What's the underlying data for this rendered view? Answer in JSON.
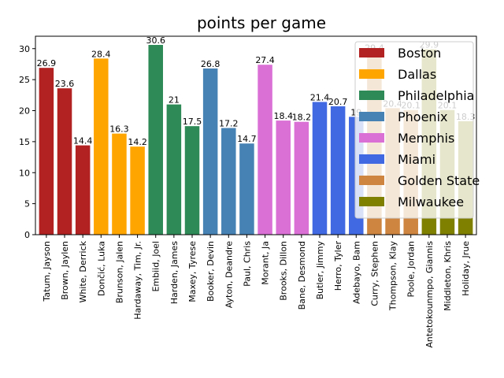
{
  "chart_data": {
    "type": "bar",
    "title": "points per game",
    "xlabel": "",
    "ylabel": "",
    "ylim": [
      0,
      32
    ],
    "yticks": [
      0,
      5,
      10,
      15,
      20,
      25,
      30
    ],
    "grid": false,
    "legend_position": "top-right",
    "categories": [
      "Tatum, Jayson",
      "Brown, Jaylen",
      "White, Derrick",
      "Dončić, Luka",
      "Brunson, Jalen",
      "Hardaway, Tim, Jr.",
      "Embiid, Joel",
      "Harden, James",
      "Maxey, Tyrese",
      "Booker, Devin",
      "Ayton, Deandre",
      "Paul, Chris",
      "Morant, Ja",
      "Brooks, Dillon",
      "Bane, Desmond",
      "Butler, Jimmy",
      "Herro, Tyler",
      "Adebayo, Bam",
      "Curry, Stephen",
      "Thompson, Klay",
      "Poole, Jordan",
      "Antetokounmpo, Giannis",
      "Middleton, Khris",
      "Holiday, Jrue"
    ],
    "values": [
      26.9,
      23.6,
      14.4,
      28.4,
      16.3,
      14.2,
      30.6,
      21,
      17.5,
      26.8,
      17.2,
      14.7,
      27.4,
      18.4,
      18.2,
      21.4,
      20.7,
      19,
      29.4,
      20.4,
      20.1,
      29.9,
      20.1,
      18.3
    ],
    "value_labels": [
      "26.9",
      "23.6",
      "14.4",
      "28.4",
      "16.3",
      "14.2",
      "30.6",
      "21",
      "17.5",
      "26.8",
      "17.2",
      "14.7",
      "27.4",
      "18.4",
      "18.2",
      "21.4",
      "20.7",
      "19",
      "29.4",
      "20.4",
      "20.1",
      "29.9",
      "20.1",
      "18.3"
    ],
    "groups": [
      0,
      0,
      0,
      1,
      1,
      1,
      2,
      2,
      2,
      3,
      3,
      3,
      4,
      4,
      4,
      5,
      5,
      5,
      6,
      6,
      6,
      7,
      7,
      7
    ],
    "legend": [
      {
        "name": "Boston",
        "color": "#b22222"
      },
      {
        "name": "Dallas",
        "color": "#ffa500"
      },
      {
        "name": "Philadelphia",
        "color": "#2e8b57"
      },
      {
        "name": "Phoenix",
        "color": "#4682b4"
      },
      {
        "name": "Memphis",
        "color": "#da70d6"
      },
      {
        "name": "Miami",
        "color": "#4169e1"
      },
      {
        "name": "Golden State",
        "color": "#cd853f"
      },
      {
        "name": "Milwaukee",
        "color": "#808000"
      }
    ]
  }
}
